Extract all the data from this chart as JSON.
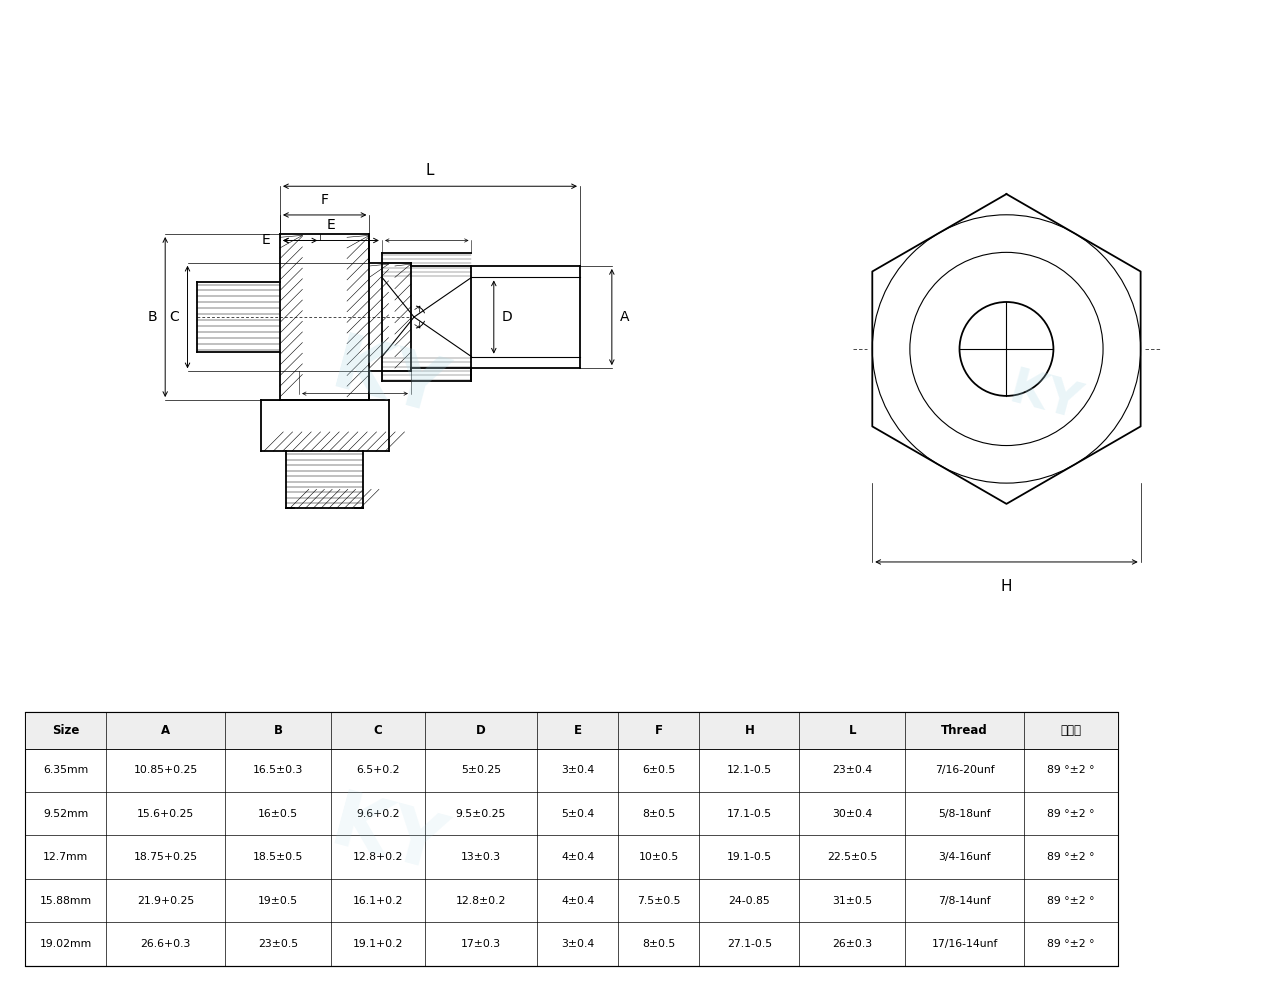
{
  "bg_color": "#ffffff",
  "table_headers": [
    "Size",
    "A",
    "B",
    "C",
    "D",
    "E",
    "F",
    "H",
    "L",
    "Thread",
    "密封度"
  ],
  "table_rows": [
    [
      "6.35mm",
      "10.85+0.25",
      "16.5±0.3",
      "6.5+0.2",
      "5±0.25",
      "3±0.4",
      "6±0.5",
      "12.1-0.5",
      "23±0.4",
      "7/16-20unf",
      "89 °±2 °"
    ],
    [
      "9.52mm",
      "15.6+0.25",
      "16±0.5",
      "9.6+0.2",
      "9.5±0.25",
      "5±0.4",
      "8±0.5",
      "17.1-0.5",
      "30±0.4",
      "5/8-18unf",
      "89 °±2 °"
    ],
    [
      "12.7mm",
      "18.75+0.25",
      "18.5±0.5",
      "12.8+0.2",
      "13±0.3",
      "4±0.4",
      "10±0.5",
      "19.1-0.5",
      "22.5±0.5",
      "3/4-16unf",
      "89 °±2 °"
    ],
    [
      "15.88mm",
      "21.9+0.25",
      "19±0.5",
      "16.1+0.2",
      "12.8±0.2",
      "4±0.4",
      "7.5±0.5",
      "24-0.85",
      "31±0.5",
      "7/8-14unf",
      "89 °±2 °"
    ],
    [
      "19.02mm",
      "26.6+0.3",
      "23±0.5",
      "19.1+0.2",
      "17±0.3",
      "3±0.4",
      "8±0.5",
      "27.1-0.5",
      "26±0.3",
      "17/16-14unf",
      "89 °±2 °"
    ]
  ],
  "watermark": "KY"
}
